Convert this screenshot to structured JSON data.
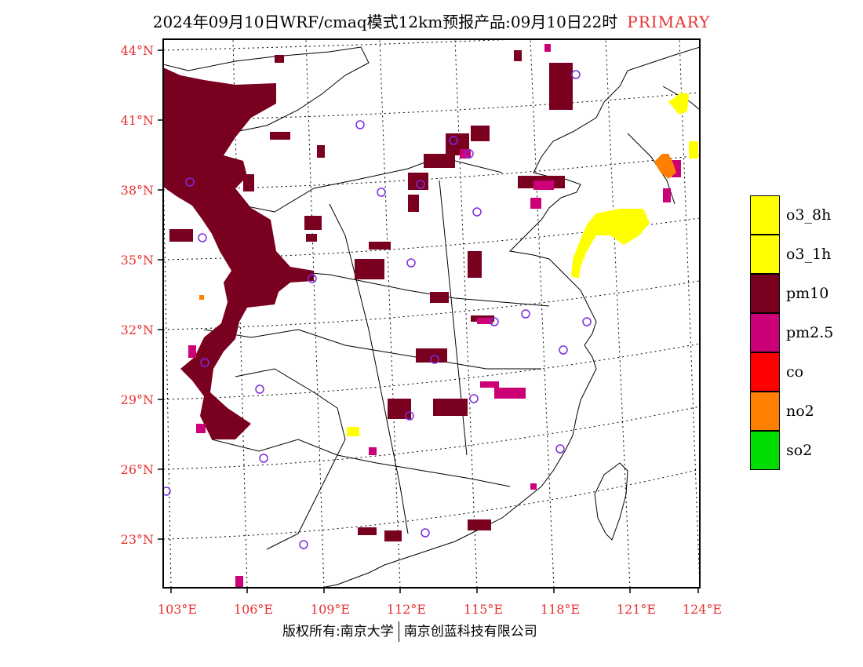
{
  "title": {
    "main": "2024年09月10日WRF/cmaq模式12km预报产品:09月10日22时",
    "tag": "PRIMARY"
  },
  "axes": {
    "lat_labels": [
      "44°N",
      "41°N",
      "38°N",
      "35°N",
      "32°N",
      "29°N",
      "26°N",
      "23°N"
    ],
    "lon_labels": [
      "103°E",
      "106°E",
      "109°E",
      "112°E",
      "115°E",
      "118°E",
      "121°E",
      "124°E"
    ]
  },
  "legend": [
    {
      "label": "o3_8h",
      "color": "#ffff00"
    },
    {
      "label": "o3_1h",
      "color": "#ffff00"
    },
    {
      "label": "pm10",
      "color": "#7a0020"
    },
    {
      "label": "pm2.5",
      "color": "#cc0077"
    },
    {
      "label": "co",
      "color": "#ff0000"
    },
    {
      "label": "no2",
      "color": "#ff7f00"
    },
    {
      "label": "so2",
      "color": "#00dd00"
    }
  ],
  "footer": {
    "left": "版权所有:南京大学",
    "right": "南京创蓝科技有限公司"
  },
  "colors": {
    "pm10": "#7a0020",
    "pm25": "#cc0077",
    "o3": "#ffff00",
    "no2": "#ff7f00",
    "station": "#7b2ddb",
    "axis_label": "#e83030"
  }
}
